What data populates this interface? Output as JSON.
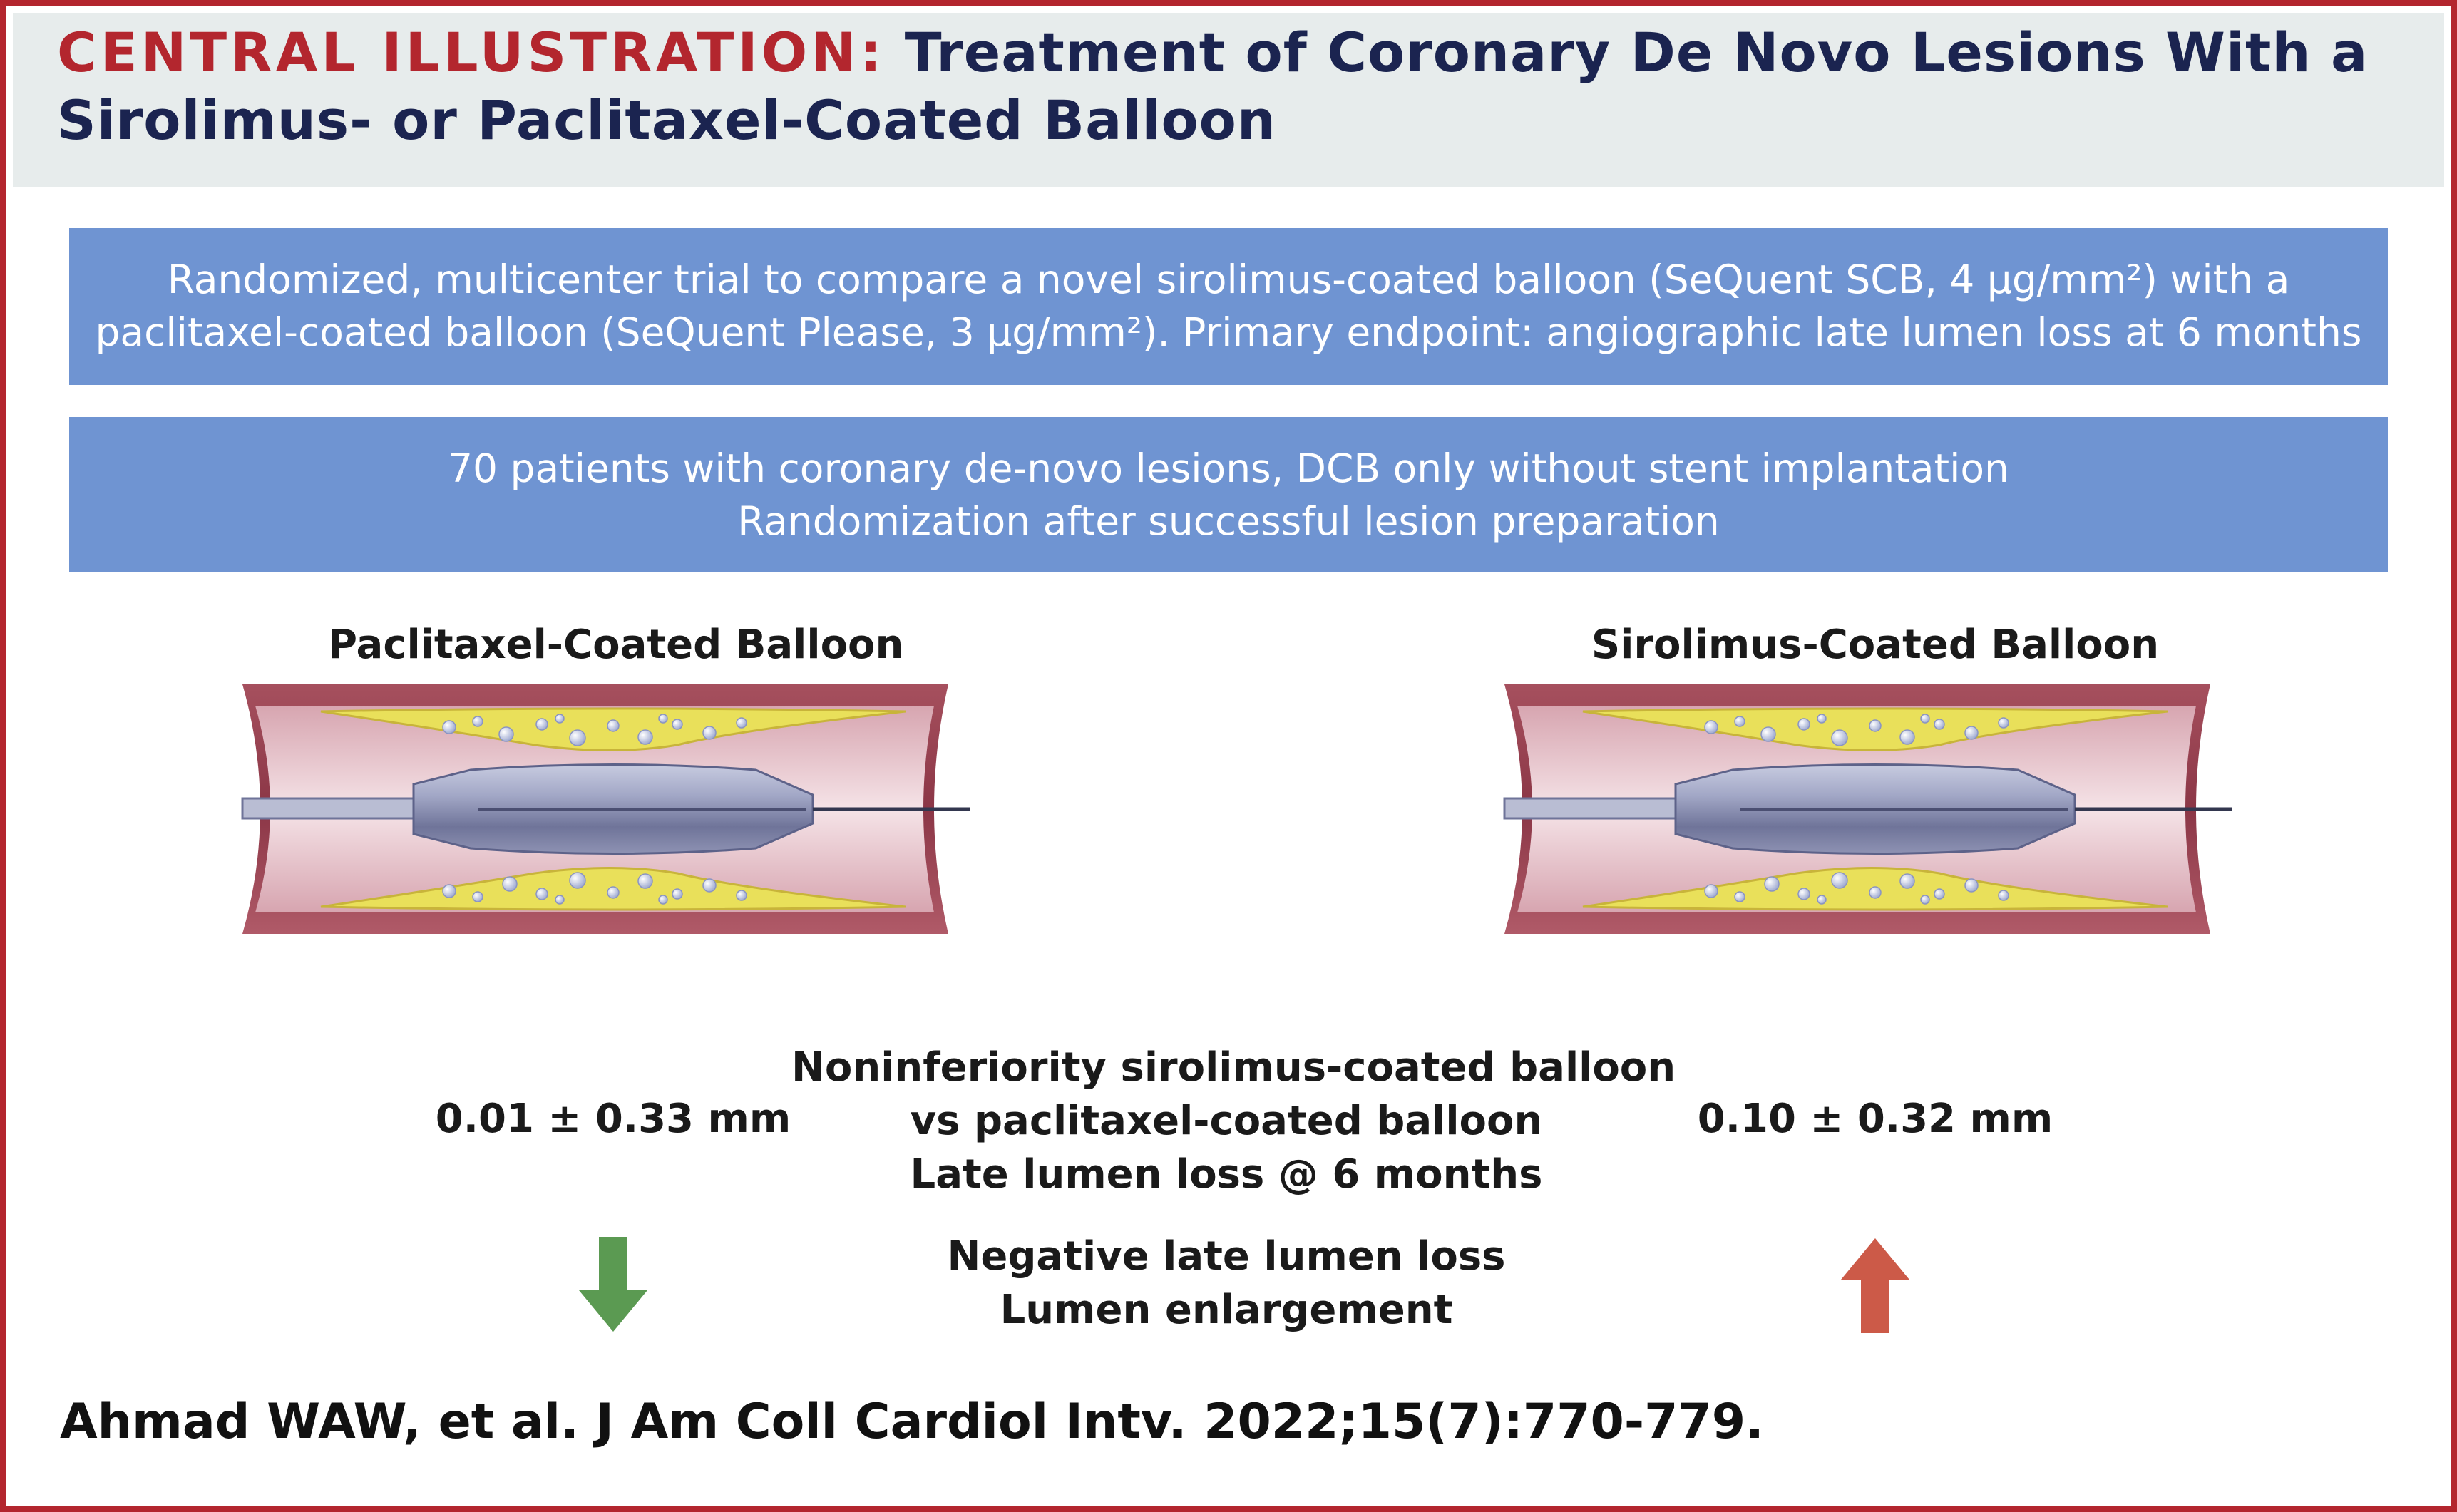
{
  "header": {
    "label": "CENTRAL ILLUSTRATION:",
    "title_line1": "Treatment of Coronary De Novo Lesions With a",
    "title_line2": "Sirolimus- or Paclitaxel-Coated Balloon"
  },
  "design_box": {
    "line1": "Randomized, multicenter trial to compare a novel sirolimus-coated balloon (SeQuent SCB, 4 μg/mm²) with a",
    "line2": "paclitaxel-coated balloon (SeQuent Please, 3 μg/mm²). Primary endpoint: angiographic late lumen loss at 6 months"
  },
  "population_box": {
    "line1": "70 patients with coronary de-novo lesions, DCB only without stent implantation",
    "line2": "Randomization after successful lesion preparation"
  },
  "arms": {
    "left": {
      "title": "Paclitaxel-Coated Balloon",
      "result": "0.01 ± 0.33 mm",
      "arrow": "arrow-down-icon"
    },
    "right": {
      "title": "Sirolimus-Coated Balloon",
      "result": "0.10 ± 0.32 mm",
      "arrow": "arrow-up-icon"
    }
  },
  "conclusion": {
    "line1": "Noninferiority sirolimus-coated balloon",
    "line2": "vs paclitaxel-coated balloon",
    "line3": "Late lumen loss @ 6 months"
  },
  "interpretation": {
    "line1": "Negative late lumen loss",
    "line2": "Lumen enlargement"
  },
  "citation": "Ahmad WAW, et al. J Am Coll Cardiol Intv. 2022;15(7):770-779.",
  "colors": {
    "frame": "#b3262e",
    "header_bg": "#e7ecec",
    "title": "#1b2450",
    "box": "#6f94d2",
    "down_arrow": "#5b9a52",
    "up_arrow": "#cc5a48"
  }
}
